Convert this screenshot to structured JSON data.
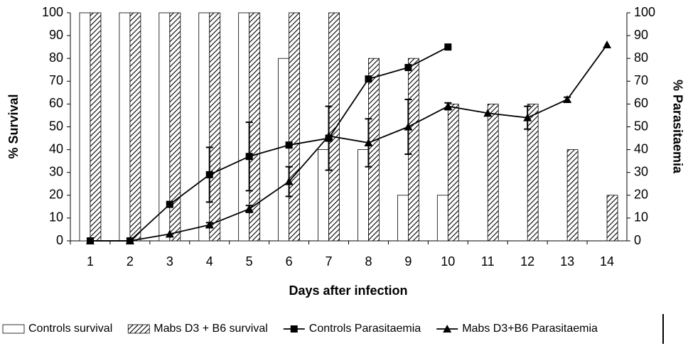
{
  "chart_data": {
    "type": "bar_line",
    "x_label": "Days after infection",
    "y_label": "% Survival",
    "y2_label": "% Parasitaemia",
    "categories": [
      "1",
      "2",
      "3",
      "4",
      "5",
      "6",
      "7",
      "8",
      "9",
      "10",
      "11",
      "12",
      "13",
      "14"
    ],
    "ylim": [
      0,
      100
    ],
    "yticks": [
      0,
      10,
      20,
      30,
      40,
      50,
      60,
      70,
      80,
      90,
      100
    ],
    "y2lim": [
      0,
      100
    ],
    "y2ticks": [
      0,
      10,
      20,
      30,
      40,
      50,
      60,
      70,
      80,
      90,
      100
    ],
    "series": [
      {
        "name": "Controls survival",
        "type": "bar",
        "color": "#ffffff",
        "hatch": false,
        "values": [
          100,
          100,
          100,
          100,
          100,
          80,
          40,
          40,
          20,
          20,
          0,
          0,
          0,
          0
        ]
      },
      {
        "name": "Mabs D3 + B6 survival",
        "type": "bar",
        "color": "#ffffff",
        "hatch": true,
        "values": [
          100,
          100,
          100,
          100,
          100,
          100,
          100,
          80,
          80,
          60,
          60,
          60,
          40,
          20
        ]
      },
      {
        "name": "Controls Parasitaemia",
        "type": "line",
        "axis": "y2",
        "color": "#000000",
        "marker": "square",
        "values": [
          0,
          0,
          16,
          29,
          37,
          42,
          45,
          71,
          76,
          85,
          null,
          null,
          null,
          null
        ],
        "errors": [
          0,
          0,
          1,
          12,
          15,
          0,
          14,
          0,
          0,
          0,
          null,
          null,
          null,
          null
        ]
      },
      {
        "name": "Mabs D3+B6 Parasitaemia",
        "type": "line",
        "axis": "y2",
        "color": "#000000",
        "marker": "triangle",
        "values": [
          0,
          0,
          3,
          7,
          14,
          26,
          46,
          43,
          50,
          59,
          56,
          54,
          62,
          86
        ],
        "errors": [
          0,
          0,
          0,
          1,
          1.5,
          6.5,
          0,
          10.5,
          12,
          1.5,
          0,
          5,
          1,
          0
        ]
      }
    ]
  }
}
